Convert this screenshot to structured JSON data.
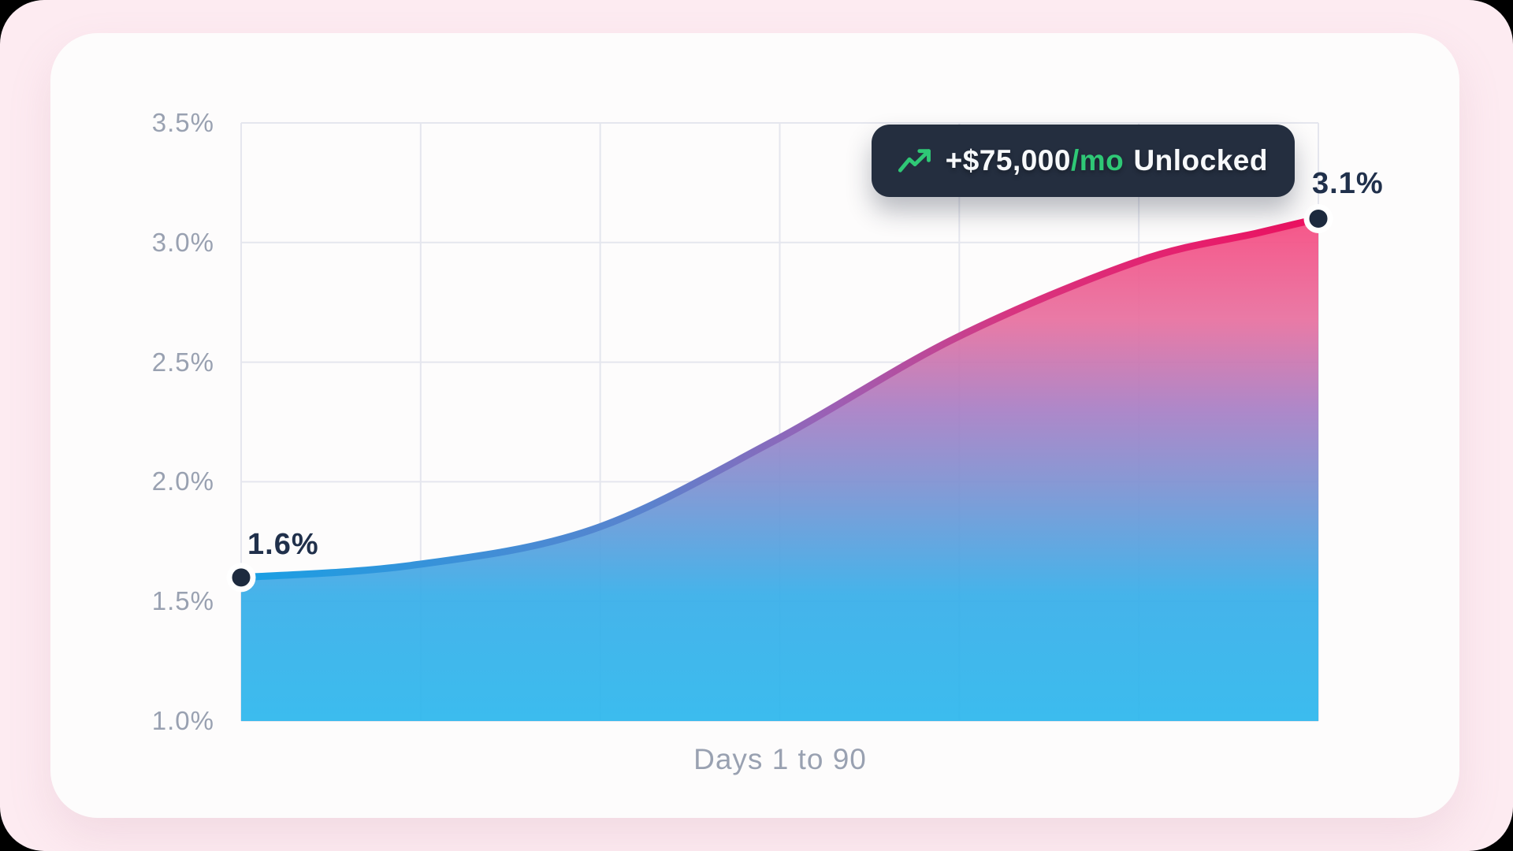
{
  "page": {
    "background": "#000000",
    "frame_color": "#fdebf1",
    "card_color": "#fdfcfc"
  },
  "chart_data": {
    "type": "area",
    "x": [
      1,
      15,
      30,
      45,
      60,
      75,
      85,
      90
    ],
    "values": [
      1.6,
      1.65,
      1.8,
      2.17,
      2.6,
      2.92,
      3.04,
      3.1
    ],
    "xlabel": "Days 1 to 90",
    "xlim": [
      1,
      90
    ],
    "ylim": [
      1.0,
      3.5
    ],
    "ytick_values": [
      3.5,
      3.0,
      2.5,
      2.0,
      1.5,
      1.0
    ],
    "ytick_labels": [
      "3.5%",
      "3.0%",
      "2.5%",
      "2.0%",
      "1.5%",
      "1.0%"
    ],
    "x_grid_divisions": 6,
    "grid": true,
    "legend_position": "none",
    "start_label": "1.6%",
    "end_label": "3.1%"
  },
  "badge": {
    "icon": "trending-up-icon",
    "amount": "+$75,000",
    "per": "/mo",
    "suffix": "Unlocked"
  },
  "colors": {
    "grid": "#e5e6ee",
    "tick_text": "#99a1b1",
    "label_text": "#20304b",
    "dot_fill": "#1d2a3e",
    "dot_ring": "#ffffff",
    "badge_bg": "#242e3f",
    "badge_text": "#f7f9fb",
    "accent_green": "#2fc876",
    "line_gradient": {
      "offsets": [
        0,
        0.38,
        0.55,
        0.72,
        1
      ],
      "colors": [
        "#18a0e4",
        "#5b82cd",
        "#9d5fb4",
        "#d8347f",
        "#ee1160"
      ]
    },
    "fill_gradient": {
      "offsets": [
        0,
        0.25,
        0.47,
        0.62,
        0.8,
        1
      ],
      "colors": [
        "#2db7ed",
        "#37aee9",
        "#7d92d2",
        "#a87fc5",
        "#e8709f",
        "#f64a80"
      ]
    }
  }
}
